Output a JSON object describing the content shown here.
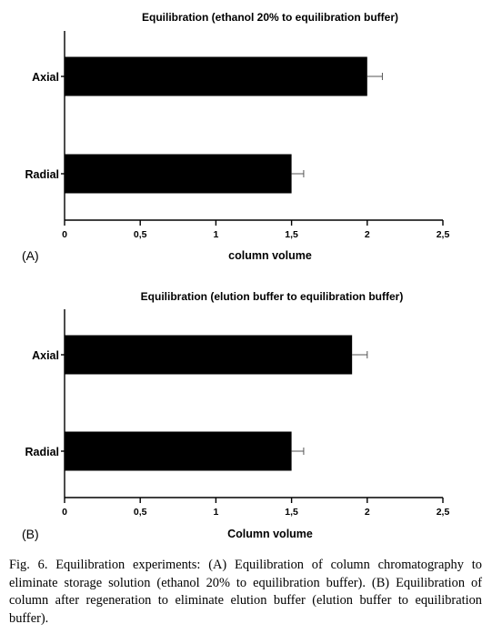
{
  "chart_data": [
    {
      "type": "bar",
      "orientation": "horizontal",
      "panel_label": "(A)",
      "title": "Equilibration (ethanol 20% to equilibration buffer)",
      "xlabel": "column volume",
      "categories": [
        "Axial",
        "Radial"
      ],
      "values": [
        2.0,
        1.5
      ],
      "errors": [
        0.1,
        0.08
      ],
      "xlim": [
        0,
        2.5
      ],
      "xticks": [
        0,
        0.5,
        1,
        1.5,
        2,
        2.5
      ],
      "xtick_labels": [
        "0",
        "0,5",
        "1",
        "1,5",
        "2",
        "2,5"
      ],
      "bar_color": "#000000",
      "grid": false
    },
    {
      "type": "bar",
      "orientation": "horizontal",
      "panel_label": "(B)",
      "title": "Equilibration (elution buffer to equilibration buffer)",
      "xlabel": "Column volume",
      "categories": [
        "Axial",
        "Radial"
      ],
      "values": [
        1.9,
        1.5
      ],
      "errors": [
        0.1,
        0.08
      ],
      "xlim": [
        0,
        2.5
      ],
      "xticks": [
        0,
        0.5,
        1,
        1.5,
        2,
        2.5
      ],
      "xtick_labels": [
        "0",
        "0,5",
        "1",
        "1,5",
        "2",
        "2,5"
      ],
      "bar_color": "#000000",
      "grid": false
    }
  ],
  "caption": "Fig. 6.  Equilibration experiments: (A) Equilibration of column chromatography to eliminate storage solution (ethanol 20% to equilibration buffer). (B) Equilibration of column after regeneration to eliminate elution buffer (elution buffer to equilibration buffer)."
}
